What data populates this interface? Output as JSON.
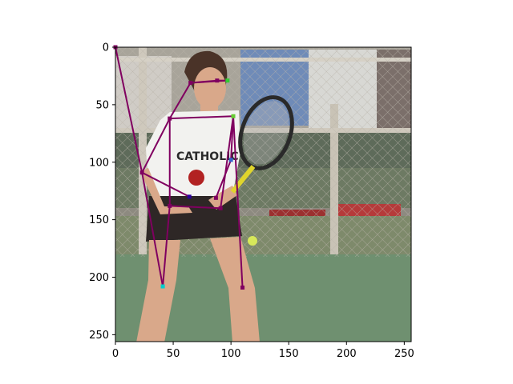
{
  "figure": {
    "background": "#ffffff",
    "axis_color": "#000000"
  },
  "chart_data": {
    "type": "scatter",
    "title": "",
    "xlabel": "",
    "ylabel": "",
    "xlim": [
      0,
      256
    ],
    "ylim": [
      256,
      0
    ],
    "y_inverted": true,
    "grid": false,
    "legend": "none",
    "x_ticks": [
      0,
      50,
      100,
      150,
      200,
      250
    ],
    "y_ticks": [
      0,
      50,
      100,
      150,
      200,
      250
    ],
    "x_tick_labels": [
      "0",
      "50",
      "100",
      "150",
      "200",
      "250"
    ],
    "y_tick_labels": [
      "0",
      "50",
      "100",
      "150",
      "200",
      "250"
    ],
    "image_content": "tennis player in white 'CATHOLIC' t-shirt and dark skirt holding racket, bleachers and chain-link fence behind, green court",
    "skeleton_color": "#800060",
    "joints": [
      {
        "name": "head_top",
        "x": 0,
        "y": 0,
        "color": "#800060"
      },
      {
        "name": "upper_neck",
        "x": 88,
        "y": 29,
        "color": "#800060"
      },
      {
        "name": "eye_left",
        "x": 65,
        "y": 31,
        "color": "#800060"
      },
      {
        "name": "eye_right",
        "x": 97,
        "y": 29,
        "color": "#33cc33"
      },
      {
        "name": "shoulder_left",
        "x": 47,
        "y": 62,
        "color": "#800060"
      },
      {
        "name": "shoulder_right",
        "x": 102,
        "y": 60,
        "color": "#66cc33"
      },
      {
        "name": "elbow_left",
        "x": 23,
        "y": 109,
        "color": "#800060"
      },
      {
        "name": "elbow_right",
        "x": 100,
        "y": 98,
        "color": "#3366cc"
      },
      {
        "name": "wrist_left",
        "x": 64,
        "y": 130,
        "color": "#2a0099"
      },
      {
        "name": "wrist_right",
        "x": 87,
        "y": 131,
        "color": "#800060"
      },
      {
        "name": "hip_left",
        "x": 47,
        "y": 138,
        "color": "#800060"
      },
      {
        "name": "hip_right",
        "x": 91,
        "y": 140,
        "color": "#800060"
      },
      {
        "name": "knee_left",
        "x": 41,
        "y": 208,
        "color": "#00cccc"
      },
      {
        "name": "knee_right",
        "x": 110,
        "y": 209,
        "color": "#800060"
      }
    ],
    "edges": [
      [
        "head_top",
        "elbow_left"
      ],
      [
        "upper_neck",
        "eye_left"
      ],
      [
        "eye_left",
        "eye_right"
      ],
      [
        "upper_neck",
        "eye_right"
      ],
      [
        "eye_left",
        "shoulder_left"
      ],
      [
        "shoulder_left",
        "shoulder_right"
      ],
      [
        "shoulder_left",
        "elbow_left"
      ],
      [
        "elbow_left",
        "wrist_left"
      ],
      [
        "shoulder_right",
        "elbow_right"
      ],
      [
        "elbow_right",
        "wrist_right"
      ],
      [
        "shoulder_left",
        "hip_left"
      ],
      [
        "shoulder_right",
        "hip_right"
      ],
      [
        "hip_left",
        "hip_right"
      ],
      [
        "elbow_left",
        "knee_left"
      ],
      [
        "hip_left",
        "knee_left"
      ],
      [
        "shoulder_right",
        "knee_right"
      ]
    ]
  }
}
